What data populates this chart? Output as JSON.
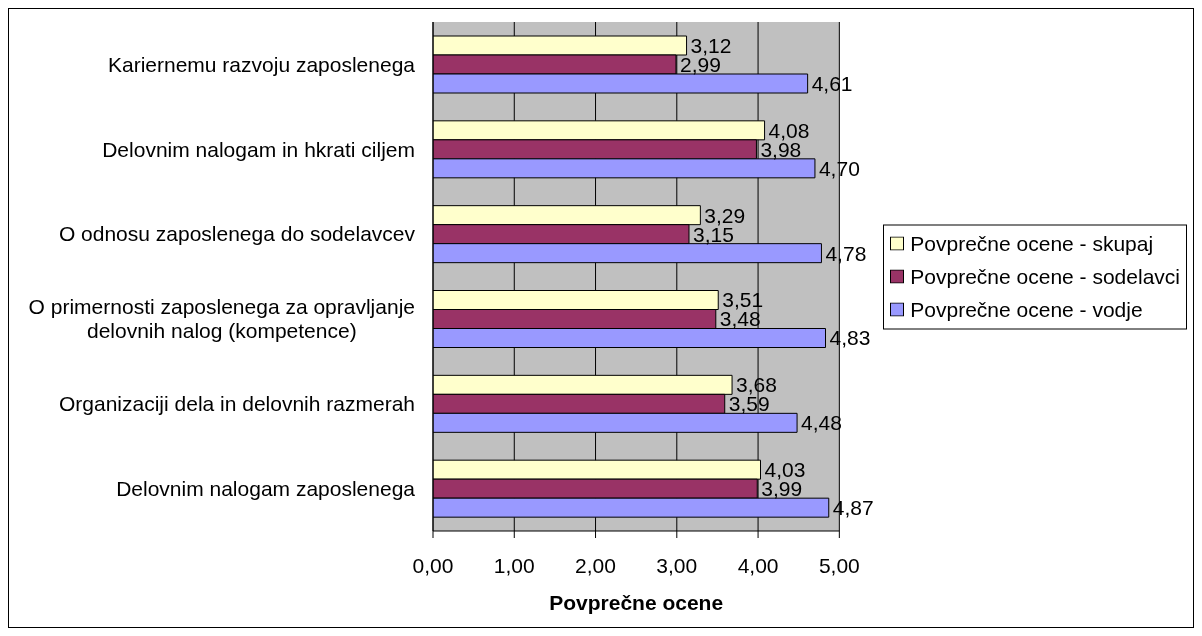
{
  "chart_data": {
    "type": "bar",
    "orientation": "horizontal",
    "categories": [
      "Kariernemu razvoju zaposlenega",
      "Delovnim nalogam in hkrati ciljem",
      "O odnosu zaposlenega do sodelavcev",
      "O primernosti zaposlenega za opravljanje delovnih nalog (kompetence)",
      "Organizaciji dela in delovnih razmerah",
      "Delovnim nalogam zaposlenega"
    ],
    "series": [
      {
        "name": "Povprečne ocene - skupaj",
        "color": "#ffffcc",
        "values": [
          3.12,
          4.08,
          3.29,
          3.51,
          3.68,
          4.03
        ],
        "value_labels": [
          "3,12",
          "4,08",
          "3,29",
          "3,51",
          "3,68",
          "4,03"
        ]
      },
      {
        "name": "Povprečne ocene - sodelavci",
        "color": "#993366",
        "values": [
          2.99,
          3.98,
          3.15,
          3.48,
          3.59,
          3.99
        ],
        "value_labels": [
          "2,99",
          "3,98",
          "3,15",
          "3,48",
          "3,59",
          "3,99"
        ]
      },
      {
        "name": "Povprečne ocene - vodje",
        "color": "#9999ff",
        "values": [
          4.61,
          4.7,
          4.78,
          4.83,
          4.48,
          4.87
        ],
        "value_labels": [
          "4,61",
          "4,70",
          "4,78",
          "4,83",
          "4,48",
          "4,87"
        ]
      }
    ],
    "xlabel": "Povprečne ocene",
    "xlim": [
      0,
      5
    ],
    "xticks": [
      {
        "value": 0,
        "label": "0,00"
      },
      {
        "value": 1,
        "label": "1,00"
      },
      {
        "value": 2,
        "label": "2,00"
      },
      {
        "value": 3,
        "label": "3,00"
      },
      {
        "value": 4,
        "label": "4,00"
      },
      {
        "value": 5,
        "label": "5,00"
      }
    ],
    "grid": "x",
    "legend": "right"
  }
}
